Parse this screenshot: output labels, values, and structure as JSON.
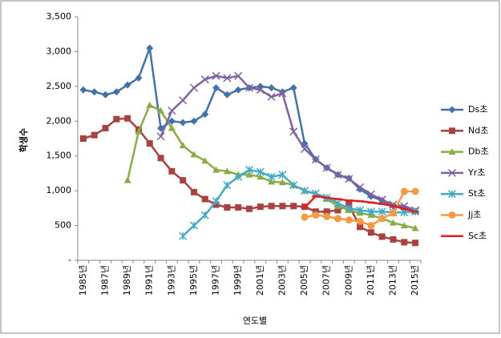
{
  "chart_data": {
    "type": "line",
    "x_label": "연도별",
    "y_label": "학생수",
    "categories": [
      "1985년",
      null,
      "1987년",
      null,
      "1989년",
      null,
      "1991년",
      null,
      "1993년",
      null,
      "1995년",
      null,
      "1997년",
      null,
      "1999년",
      null,
      "2001년",
      null,
      "2003년",
      null,
      "2005년",
      null,
      "2007년",
      null,
      "2009년",
      null,
      "2011년",
      null,
      "2013년",
      null,
      "2015년"
    ],
    "ylim": [
      0,
      3500
    ],
    "yticks": [
      {
        "value": 0,
        "label": "-"
      },
      500,
      {
        "value": 1000,
        "label": "1,000"
      },
      {
        "value": 1500,
        "label": "1,500"
      },
      {
        "value": 2000,
        "label": "2,000"
      },
      {
        "value": 2500,
        "label": "2,500"
      },
      {
        "value": 3000,
        "label": "3,000"
      },
      {
        "value": 3500,
        "label": "3,500"
      }
    ],
    "grid": false,
    "legend": "right",
    "series": [
      {
        "name": "Ds초",
        "color": "#4472a8",
        "marker": "diamond",
        "values": [
          2450,
          2420,
          2380,
          2420,
          2520,
          2620,
          3050,
          1900,
          2000,
          1980,
          2000,
          2100,
          2480,
          2380,
          2450,
          2480,
          2500,
          2480,
          2420,
          2480,
          1680,
          1450,
          1330,
          1230,
          1180,
          1020,
          920,
          860,
          780,
          750,
          700
        ]
      },
      {
        "name": "Nd초",
        "color": "#a84240",
        "marker": "square",
        "values": [
          1750,
          1800,
          1900,
          2030,
          2040,
          1880,
          1680,
          1470,
          1280,
          1150,
          980,
          880,
          800,
          760,
          760,
          740,
          770,
          780,
          780,
          780,
          770,
          700,
          700,
          720,
          800,
          480,
          400,
          340,
          300,
          260,
          250
        ]
      },
      {
        "name": "Db초",
        "color": "#8aac44",
        "marker": "triangle",
        "values": [
          null,
          null,
          null,
          null,
          1150,
          1850,
          2230,
          2150,
          1900,
          1650,
          1520,
          1430,
          1300,
          1280,
          1230,
          1230,
          1200,
          1130,
          1120,
          1080,
          1000,
          950,
          880,
          780,
          720,
          680,
          650,
          600,
          540,
          500,
          460
        ]
      },
      {
        "name": "Yr초",
        "color": "#7e62a0",
        "marker": "x",
        "values": [
          null,
          null,
          null,
          null,
          null,
          null,
          null,
          1780,
          2150,
          2300,
          2480,
          2600,
          2650,
          2620,
          2650,
          2480,
          2450,
          2350,
          2400,
          1850,
          1600,
          1450,
          1330,
          1230,
          1170,
          1050,
          950,
          870,
          800,
          780,
          720
        ]
      },
      {
        "name": "St초",
        "color": "#46aac4",
        "marker": "star",
        "values": [
          null,
          null,
          null,
          null,
          null,
          null,
          null,
          null,
          null,
          350,
          500,
          650,
          850,
          1080,
          1200,
          1300,
          1270,
          1200,
          1230,
          1080,
          1000,
          960,
          900,
          820,
          750,
          720,
          700,
          700,
          690,
          690,
          700
        ]
      },
      {
        "name": "Jj초",
        "color": "#f49a42",
        "marker": "circle",
        "values": [
          null,
          null,
          null,
          null,
          null,
          null,
          null,
          null,
          null,
          null,
          null,
          null,
          null,
          null,
          null,
          null,
          null,
          null,
          null,
          null,
          620,
          650,
          630,
          600,
          580,
          560,
          500,
          600,
          680,
          990,
          990
        ]
      },
      {
        "name": "Sc초",
        "color": "#e02020",
        "marker": "dash",
        "values": [
          null,
          null,
          null,
          null,
          null,
          null,
          null,
          null,
          null,
          null,
          null,
          null,
          null,
          null,
          null,
          null,
          null,
          null,
          null,
          null,
          760,
          920,
          900,
          880,
          860,
          850,
          830,
          810,
          780,
          740,
          700
        ]
      }
    ]
  }
}
